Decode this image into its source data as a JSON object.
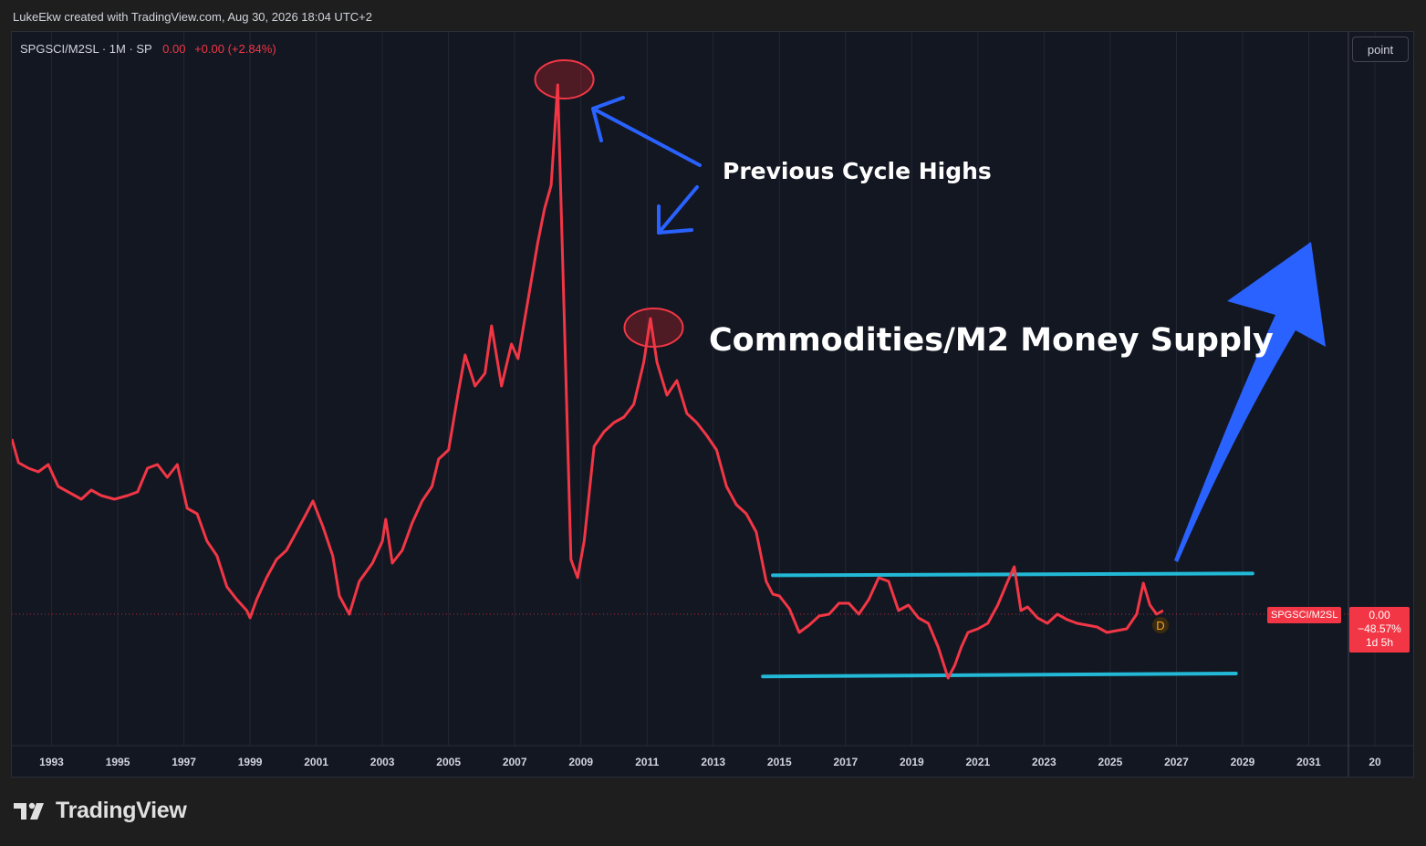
{
  "credit": "LukeEkw created with TradingView.com, Aug 30, 2026 18:04 UTC+2",
  "legend": {
    "symbol": "SPGSCI/M2SL · 1M · SP",
    "value": "0.00",
    "change": "+0.00 (+2.84%)"
  },
  "toolbar": {
    "scale_label": "point"
  },
  "price_scale": {
    "tag": "SPGSCI/M2SL",
    "value": "0.00",
    "change": "−48.57%",
    "countdown": "1d 5h"
  },
  "dividend_marker": "D",
  "logo": {
    "text": "TradingView"
  },
  "colors": {
    "series": "#f23645",
    "channel": "#22b8d6",
    "arrow": "#2962ff",
    "highlight": "#f23645"
  },
  "chart_data": {
    "type": "line",
    "title": "Commodities/M2 Money Supply",
    "annotations": [
      "Previous Cycle Highs",
      "Commodities/M2 Money Supply"
    ],
    "xlim": [
      1991.8,
      2032.2
    ],
    "x_tick_labels": [
      "1993",
      "1995",
      "1997",
      "1999",
      "2001",
      "2003",
      "2005",
      "2007",
      "2009",
      "2011",
      "2013",
      "2015",
      "2017",
      "2019",
      "2021",
      "2023",
      "2025",
      "2027",
      "2029",
      "2031",
      "20"
    ],
    "series": [
      {
        "x": [
          1991.8,
          1992.0,
          1992.3,
          1992.6,
          1992.9,
          1993.2,
          1993.6,
          1993.9,
          1994.2,
          1994.5,
          1994.9,
          1995.3,
          1995.6,
          1995.9,
          1996.2,
          1996.5,
          1996.8,
          1997.1,
          1997.4,
          1997.7,
          1998.0,
          1998.3,
          1998.6,
          1998.9,
          1999.0,
          1999.2,
          1999.5,
          1999.8,
          2000.1,
          2000.4,
          2000.7,
          2000.9,
          2001.2,
          2001.5,
          2001.7,
          2002.0,
          2002.3,
          2002.7,
          2003.0,
          2003.1,
          2003.3,
          2003.6,
          2003.9,
          2004.2,
          2004.5,
          2004.7,
          2005.0,
          2005.3,
          2005.5,
          2005.8,
          2006.1,
          2006.3,
          2006.6,
          2006.9,
          2007.1,
          2007.4,
          2007.7,
          2007.9,
          2008.1,
          2008.3,
          2008.5,
          2008.7,
          2008.9,
          2009.1,
          2009.4,
          2009.7,
          2010.0,
          2010.3,
          2010.6,
          2010.9,
          2011.1,
          2011.3,
          2011.6,
          2011.9,
          2012.2,
          2012.5,
          2012.8,
          2013.1,
          2013.4,
          2013.7,
          2014.0,
          2014.3,
          2014.6,
          2014.8,
          2015.0,
          2015.3,
          2015.6,
          2015.9,
          2016.2,
          2016.5,
          2016.8,
          2017.1,
          2017.4,
          2017.7,
          2018.0,
          2018.3,
          2018.6,
          2018.9,
          2019.2,
          2019.5,
          2019.8,
          2020.1,
          2020.3,
          2020.5,
          2020.7,
          2021.0,
          2021.3,
          2021.6,
          2021.9,
          2022.1,
          2022.3,
          2022.5,
          2022.8,
          2023.1,
          2023.4,
          2023.7,
          2024.0,
          2024.3,
          2024.6,
          2024.9,
          2025.2,
          2025.5,
          2025.8,
          2026.0,
          2026.2,
          2026.4,
          2026.6
        ],
        "y": [
          0.96,
          0.83,
          0.8,
          0.78,
          0.82,
          0.7,
          0.66,
          0.63,
          0.68,
          0.65,
          0.63,
          0.65,
          0.67,
          0.8,
          0.82,
          0.75,
          0.82,
          0.58,
          0.55,
          0.4,
          0.32,
          0.15,
          0.08,
          0.02,
          -0.02,
          0.08,
          0.2,
          0.3,
          0.35,
          0.45,
          0.55,
          0.62,
          0.48,
          0.32,
          0.1,
          0.0,
          0.18,
          0.28,
          0.4,
          0.52,
          0.28,
          0.35,
          0.5,
          0.62,
          0.7,
          0.85,
          0.9,
          1.22,
          1.42,
          1.25,
          1.32,
          1.58,
          1.25,
          1.48,
          1.4,
          1.72,
          2.04,
          2.22,
          2.35,
          2.9,
          1.6,
          0.3,
          0.2,
          0.4,
          0.92,
          1.0,
          1.05,
          1.08,
          1.15,
          1.38,
          1.62,
          1.38,
          1.2,
          1.28,
          1.1,
          1.05,
          0.98,
          0.9,
          0.7,
          0.6,
          0.55,
          0.45,
          0.18,
          0.11,
          0.1,
          0.03,
          -0.1,
          -0.06,
          -0.01,
          0.0,
          0.06,
          0.06,
          0.0,
          0.08,
          0.2,
          0.18,
          0.02,
          0.05,
          -0.02,
          -0.05,
          -0.18,
          -0.35,
          -0.28,
          -0.18,
          -0.1,
          -0.08,
          -0.05,
          0.05,
          0.18,
          0.26,
          0.02,
          0.04,
          -0.02,
          -0.05,
          0.0,
          -0.03,
          -0.05,
          -0.06,
          -0.07,
          -0.1,
          -0.09,
          -0.08,
          0.0,
          0.17,
          0.05,
          0.0,
          0.02
        ]
      }
    ],
    "channel_lines": [
      {
        "x": [
          2014.8,
          2029.3
        ],
        "y": [
          0.213,
          0.223
        ]
      },
      {
        "x": [
          2014.5,
          2028.8
        ],
        "y": [
          -0.341,
          -0.325
        ]
      }
    ],
    "highlight_circles": [
      {
        "x": 2008.5,
        "y": 2.93
      },
      {
        "x": 2011.2,
        "y": 1.57
      }
    ]
  }
}
